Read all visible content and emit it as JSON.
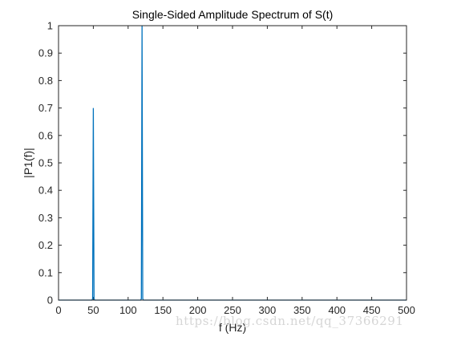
{
  "chart_data": {
    "type": "line",
    "title": "Single-Sided Amplitude Spectrum of S(t)",
    "xlabel": "f (Hz)",
    "ylabel": "|P1(f)|",
    "xlim": [
      0,
      500
    ],
    "ylim": [
      0,
      1
    ],
    "xticks": [
      0,
      50,
      100,
      150,
      200,
      250,
      300,
      350,
      400,
      450,
      500
    ],
    "yticks": [
      0,
      0.1,
      0.2,
      0.3,
      0.4,
      0.5,
      0.6,
      0.7,
      0.8,
      0.9,
      1
    ],
    "grid": false,
    "series": [
      {
        "color": "#0072BD",
        "x": [
          0,
          48,
          49,
          50,
          51,
          52,
          118,
          119,
          120,
          121,
          122,
          500
        ],
        "y": [
          0,
          0,
          0.005,
          0.7,
          0.005,
          0,
          0,
          0.005,
          1.0,
          0.005,
          0,
          0
        ]
      }
    ]
  },
  "watermark": "https://blog.csdn.net/qq_37366291"
}
